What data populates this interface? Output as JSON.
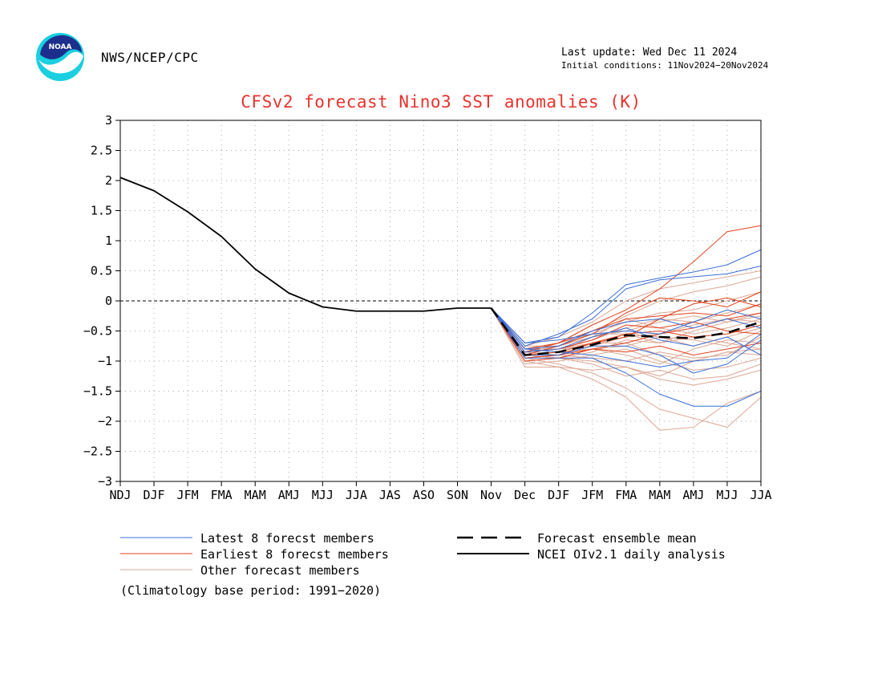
{
  "header": {
    "logo_text": "NOAA",
    "agency": "NWS/NCEP/CPC",
    "last_update": "Last update: Wed Dec 11 2024",
    "initial_conditions": "Initial conditions: 11Nov2024−20Nov2024"
  },
  "colors": {
    "title": "#e8322d",
    "latest_members": "#3b6fd6",
    "earliest_members": "#e2421b",
    "other_members": "#dca895",
    "analysis": "#000000",
    "ensemble_mean": "#000000"
  },
  "legend": {
    "latest": "Latest 8 forecst members",
    "earliest": "Earliest 8 forecst members",
    "other": "Other forecast members",
    "mean": "Forecast ensemble mean",
    "analysis": "NCEI OIv2.1 daily analysis"
  },
  "footnote": "(Climatology base period: 1991−2020)",
  "chart_data": {
    "type": "line",
    "title": "CFSv2 forecast Nino3 SST anomalies (K)",
    "categories": [
      "NDJ",
      "DJF",
      "JFM",
      "FMA",
      "MAM",
      "AMJ",
      "MJJ",
      "JJA",
      "JAS",
      "ASO",
      "SON",
      "Nov",
      "Dec",
      "DJF",
      "JFM",
      "FMA",
      "MAM",
      "AMJ",
      "MJJ",
      "JJA"
    ],
    "ylim": [
      -3,
      3
    ],
    "yticks": [
      3,
      2.5,
      2,
      1.5,
      1,
      0.5,
      0,
      -0.5,
      -1,
      -1.5,
      -2,
      -2.5,
      -3
    ],
    "ytick_labels": [
      "3",
      "2.5",
      "2",
      "1.5",
      "1",
      "0.5",
      "0",
      "−0.5",
      "−1",
      "−1.5",
      "−2",
      "−2.5",
      "−3"
    ],
    "grid": true,
    "zero_line": true,
    "analysis": {
      "name": "NCEI OIv2.1 daily analysis",
      "start_index": 0,
      "values": [
        2.05,
        1.83,
        1.48,
        1.07,
        0.53,
        0.13,
        -0.1,
        -0.17,
        -0.17,
        -0.17,
        -0.12,
        -0.12
      ]
    },
    "ensemble_mean": {
      "name": "Forecast ensemble mean",
      "start_index": 11,
      "values": [
        -0.12,
        -0.9,
        -0.85,
        -0.73,
        -0.57,
        -0.6,
        -0.62,
        -0.53,
        -0.35
      ]
    },
    "latest_members": [
      [
        -0.12,
        -0.7,
        -0.6,
        -0.2,
        0.27,
        0.38,
        0.48,
        0.6,
        0.85
      ],
      [
        -0.12,
        -0.75,
        -0.55,
        -0.3,
        0.2,
        0.35,
        0.4,
        0.45,
        0.58
      ],
      [
        -0.12,
        -0.8,
        -0.75,
        -0.5,
        -0.35,
        -0.3,
        -0.45,
        -0.3,
        -0.45
      ],
      [
        -0.12,
        -0.85,
        -0.8,
        -0.6,
        -0.45,
        -0.65,
        -0.75,
        -0.6,
        -0.9
      ],
      [
        -0.12,
        -0.9,
        -0.9,
        -0.75,
        -0.75,
        -0.9,
        -1.2,
        -1.05,
        -0.65
      ],
      [
        -0.12,
        -0.95,
        -0.95,
        -0.95,
        -1.2,
        -1.55,
        -1.75,
        -1.75,
        -1.5
      ],
      [
        -0.12,
        -0.8,
        -0.85,
        -0.9,
        -1.0,
        -1.1,
        -1.0,
        -0.95,
        -0.55
      ],
      [
        -0.12,
        -0.7,
        -0.65,
        -0.55,
        -0.5,
        -0.55,
        -0.35,
        -0.15,
        -0.3
      ]
    ],
    "earliest_members": [
      [
        -0.12,
        -0.85,
        -0.7,
        -0.4,
        -0.15,
        0.2,
        0.65,
        1.15,
        1.25
      ],
      [
        -0.12,
        -0.9,
        -0.75,
        -0.55,
        -0.2,
        0.05,
        0.0,
        -0.1,
        0.15
      ],
      [
        -0.12,
        -0.95,
        -0.9,
        -0.7,
        -0.6,
        -0.3,
        -0.05,
        0.05,
        -0.1
      ],
      [
        -0.12,
        -1.0,
        -0.95,
        -0.8,
        -0.7,
        -0.55,
        -0.45,
        -0.3,
        -0.2
      ],
      [
        -0.12,
        -0.8,
        -0.7,
        -0.5,
        -0.3,
        -0.25,
        -0.2,
        -0.25,
        -0.05
      ],
      [
        -0.12,
        -0.9,
        -0.85,
        -0.7,
        -0.55,
        -0.5,
        -0.6,
        -0.55,
        -0.4
      ],
      [
        -0.12,
        -0.95,
        -0.9,
        -0.8,
        -0.85,
        -0.75,
        -0.9,
        -0.8,
        -0.7
      ],
      [
        -0.12,
        -0.85,
        -0.8,
        -0.65,
        -0.4,
        -0.45,
        -0.35,
        -0.5,
        -0.55
      ]
    ],
    "other_members": [
      [
        -0.12,
        -0.95,
        -1.05,
        -1.2,
        -1.45,
        -1.8,
        -1.95,
        -2.1,
        -1.6
      ],
      [
        -0.12,
        -1.0,
        -1.1,
        -1.3,
        -1.6,
        -2.15,
        -2.1,
        -1.7,
        -1.5
      ],
      [
        -0.12,
        -0.9,
        -0.95,
        -1.0,
        -1.1,
        -1.3,
        -1.4,
        -1.3,
        -1.15
      ],
      [
        -0.12,
        -0.85,
        -0.8,
        -0.7,
        -0.7,
        -0.9,
        -1.0,
        -0.85,
        -0.8
      ],
      [
        -0.12,
        -0.95,
        -0.9,
        -0.75,
        -0.55,
        -0.6,
        -0.75,
        -0.6,
        -0.45
      ],
      [
        -0.12,
        -0.8,
        -0.7,
        -0.55,
        -0.35,
        -0.2,
        -0.15,
        0.0,
        0.15
      ],
      [
        -0.12,
        -0.85,
        -0.75,
        -0.5,
        -0.25,
        0.0,
        0.15,
        0.25,
        0.4
      ],
      [
        -0.12,
        -0.75,
        -0.6,
        -0.35,
        0.0,
        0.2,
        0.3,
        0.4,
        0.5
      ],
      [
        -0.12,
        -1.05,
        -1.0,
        -0.9,
        -0.8,
        -1.0,
        -1.15,
        -1.1,
        -0.95
      ],
      [
        -0.12,
        -0.9,
        -0.95,
        -0.85,
        -0.65,
        -0.7,
        -0.5,
        -0.35,
        -0.25
      ],
      [
        -0.12,
        -0.85,
        -0.9,
        -0.8,
        -0.9,
        -1.05,
        -0.8,
        -0.65,
        -0.7
      ],
      [
        -0.12,
        -1.0,
        -0.95,
        -1.05,
        -1.25,
        -1.15,
        -1.3,
        -1.25,
        -1.05
      ],
      [
        -0.12,
        -0.8,
        -0.8,
        -0.65,
        -0.45,
        -0.3,
        -0.35,
        -0.2,
        -0.05
      ],
      [
        -0.12,
        -0.9,
        -0.85,
        -0.6,
        -0.3,
        -0.45,
        -0.55,
        -0.45,
        -0.3
      ],
      [
        -0.12,
        -0.95,
        -0.9,
        -0.95,
        -1.0,
        -0.85,
        -0.95,
        -0.9,
        -0.6
      ],
      [
        -0.12,
        -0.85,
        -0.8,
        -0.75,
        -0.6,
        -0.55,
        -0.4,
        -0.3,
        -0.35
      ],
      [
        -0.12,
        -0.75,
        -0.75,
        -0.55,
        -0.55,
        -0.7,
        -0.6,
        -0.7,
        -0.8
      ],
      [
        -0.12,
        -1.1,
        -1.1,
        -1.15,
        -1.1,
        -1.25,
        -1.0,
        -0.85,
        -0.9
      ],
      [
        -0.12,
        -0.9,
        -0.85,
        -0.8,
        -0.75,
        -0.6,
        -0.65,
        -0.75,
        -0.5
      ],
      [
        -0.12,
        -0.8,
        -0.75,
        -0.6,
        -0.5,
        -0.35,
        -0.25,
        -0.35,
        -0.2
      ]
    ]
  }
}
